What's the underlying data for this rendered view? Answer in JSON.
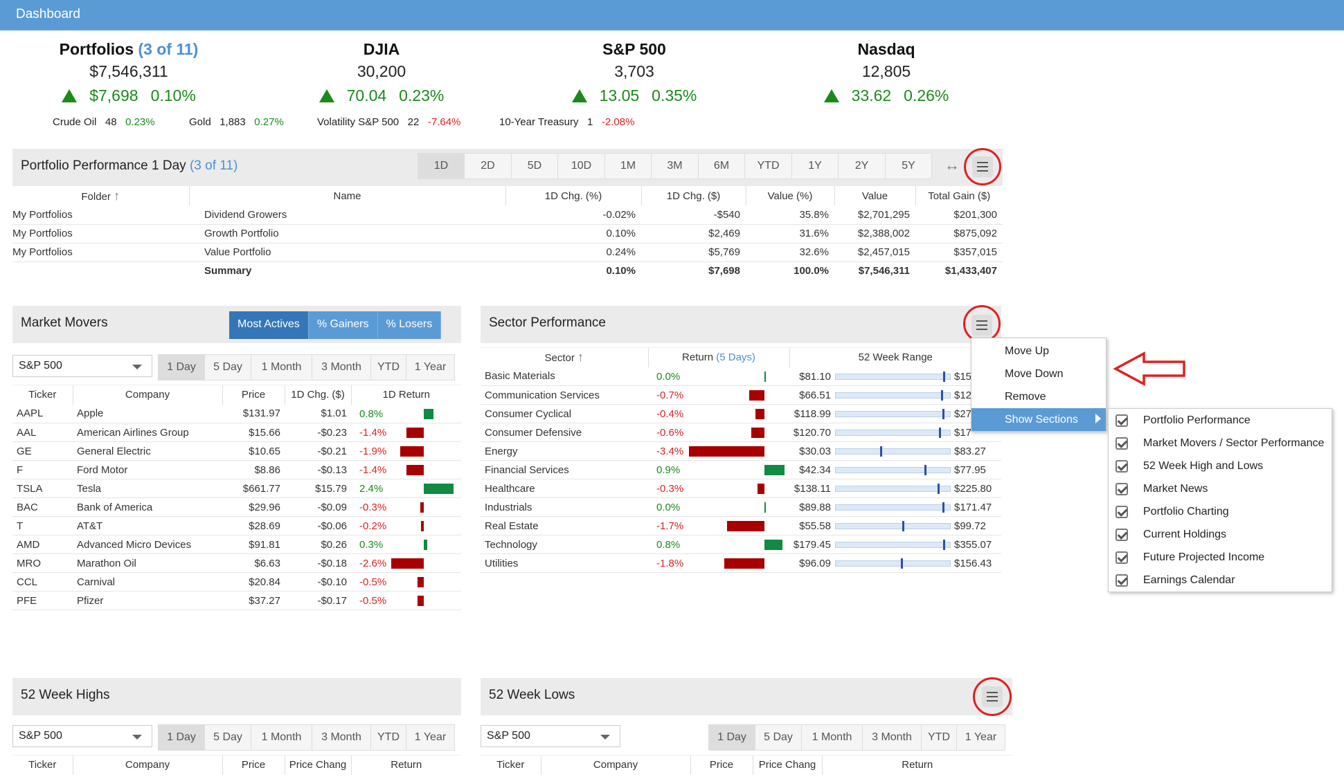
{
  "topbar": {
    "title": "Dashboard"
  },
  "summary": [
    {
      "title": "Portfolios",
      "sub": "(3 of 11)",
      "value": "$7,546,311",
      "chg": "$7,698",
      "pct": "0.10%"
    },
    {
      "title": "DJIA",
      "sub": "",
      "value": "30,200",
      "chg": "70.04",
      "pct": "0.23%"
    },
    {
      "title": "S&P 500",
      "sub": "",
      "value": "3,703",
      "chg": "13.05",
      "pct": "0.35%"
    },
    {
      "title": "Nasdaq",
      "sub": "",
      "value": "12,805",
      "chg": "33.62",
      "pct": "0.26%"
    }
  ],
  "commodities": [
    {
      "name": "Crude Oil",
      "value": "48",
      "pct": "0.23%",
      "dir": "up"
    },
    {
      "name": "Gold",
      "value": "1,883",
      "pct": "0.27%",
      "dir": "up"
    },
    {
      "name": "Volatility S&P 500",
      "value": "22",
      "pct": "-7.64%",
      "dir": "down"
    },
    {
      "name": "10-Year Treasury",
      "value": "1",
      "pct": "-2.08%",
      "dir": "down"
    }
  ],
  "portfolio_perf": {
    "title": "Portfolio Performance 1 Day",
    "sub": "(3 of 11)",
    "ranges": [
      "1D",
      "2D",
      "5D",
      "10D",
      "1M",
      "3M",
      "6M",
      "YTD",
      "1Y",
      "2Y",
      "5Y"
    ],
    "expand_icon": "↔",
    "columns": [
      "Folder",
      "Name",
      "1D Chg. (%)",
      "1D Chg. ($)",
      "Value (%)",
      "Value",
      "Total Gain ($)"
    ],
    "rows": [
      {
        "folder": "My Portfolios",
        "name": "Dividend Growers",
        "pct": "-0.02%",
        "chg": "-$540",
        "vpct": "35.8%",
        "value": "$2,701,295",
        "gain": "$201,300",
        "dir": "down"
      },
      {
        "folder": "My Portfolios",
        "name": "Growth Portfolio",
        "pct": "0.10%",
        "chg": "$2,469",
        "vpct": "31.6%",
        "value": "$2,388,002",
        "gain": "$875,092",
        "dir": "up"
      },
      {
        "folder": "My Portfolios",
        "name": "Value Portfolio",
        "pct": "0.24%",
        "chg": "$5,769",
        "vpct": "32.6%",
        "value": "$2,457,015",
        "gain": "$357,015",
        "dir": "up"
      }
    ],
    "summary": {
      "label": "Summary",
      "pct": "0.10%",
      "chg": "$7,698",
      "vpct": "100.0%",
      "value": "$7,546,311",
      "gain": "$1,433,407"
    }
  },
  "market_movers": {
    "title": "Market Movers",
    "tabs": [
      "Most Actives",
      "% Gainers",
      "% Losers"
    ],
    "index": "S&P 500",
    "ranges": [
      "1 Day",
      "5 Day",
      "1 Month",
      "3 Month",
      "YTD",
      "1 Year"
    ],
    "columns": [
      "Ticker",
      "Company",
      "Price",
      "1D Chg. ($)",
      "1D Return"
    ],
    "rows": [
      {
        "t": "AAPL",
        "c": "Apple",
        "p": "$131.97",
        "ch": "$1.01",
        "r": "0.8%",
        "v": 0.8
      },
      {
        "t": "AAL",
        "c": "American Airlines Group",
        "p": "$15.66",
        "ch": "-$0.23",
        "r": "-1.4%",
        "v": -1.4
      },
      {
        "t": "GE",
        "c": "General Electric",
        "p": "$10.65",
        "ch": "-$0.21",
        "r": "-1.9%",
        "v": -1.9
      },
      {
        "t": "F",
        "c": "Ford Motor",
        "p": "$8.86",
        "ch": "-$0.13",
        "r": "-1.4%",
        "v": -1.4
      },
      {
        "t": "TSLA",
        "c": "Tesla",
        "p": "$661.77",
        "ch": "$15.79",
        "r": "2.4%",
        "v": 2.4
      },
      {
        "t": "BAC",
        "c": "Bank of America",
        "p": "$29.96",
        "ch": "-$0.09",
        "r": "-0.3%",
        "v": -0.3
      },
      {
        "t": "T",
        "c": "AT&T",
        "p": "$28.69",
        "ch": "-$0.06",
        "r": "-0.2%",
        "v": -0.2
      },
      {
        "t": "AMD",
        "c": "Advanced Micro Devices",
        "p": "$91.81",
        "ch": "$0.26",
        "r": "0.3%",
        "v": 0.3
      },
      {
        "t": "MRO",
        "c": "Marathon Oil",
        "p": "$6.63",
        "ch": "-$0.18",
        "r": "-2.6%",
        "v": -2.6
      },
      {
        "t": "CCL",
        "c": "Carnival",
        "p": "$20.84",
        "ch": "-$0.10",
        "r": "-0.5%",
        "v": -0.5
      },
      {
        "t": "PFE",
        "c": "Pfizer",
        "p": "$37.27",
        "ch": "-$0.17",
        "r": "-0.5%",
        "v": -0.5
      }
    ]
  },
  "sector_perf": {
    "title": "Sector Performance",
    "col_sector": "Sector",
    "col_return": "Return",
    "col_return_sub": "(5 Days)",
    "col_range": "52 Week Range",
    "rows": [
      {
        "s": "Basic Materials",
        "r": "0.0%",
        "v": 0.0,
        "lo": "$81.10",
        "hi": "$15",
        "pos": 0.97
      },
      {
        "s": "Communication Services",
        "r": "-0.7%",
        "v": -0.7,
        "lo": "$66.51",
        "hi": "$12",
        "pos": 0.95
      },
      {
        "s": "Consumer Cyclical",
        "r": "-0.4%",
        "v": -0.4,
        "lo": "$118.99",
        "hi": "$27",
        "pos": 0.96
      },
      {
        "s": "Consumer Defensive",
        "r": "-0.6%",
        "v": -0.6,
        "lo": "$120.70",
        "hi": "$17",
        "pos": 0.93
      },
      {
        "s": "Energy",
        "r": "-3.4%",
        "v": -3.4,
        "lo": "$30.03",
        "hi": "$83.27",
        "pos": 0.4
      },
      {
        "s": "Financial Services",
        "r": "0.9%",
        "v": 0.9,
        "lo": "$42.34",
        "hi": "$77.95",
        "pos": 0.8
      },
      {
        "s": "Healthcare",
        "r": "-0.3%",
        "v": -0.3,
        "lo": "$138.11",
        "hi": "$225.80",
        "pos": 0.92
      },
      {
        "s": "Industrials",
        "r": "0.0%",
        "v": 0.0,
        "lo": "$89.88",
        "hi": "$171.47",
        "pos": 0.96
      },
      {
        "s": "Real Estate",
        "r": "-1.7%",
        "v": -1.7,
        "lo": "$55.58",
        "hi": "$99.72",
        "pos": 0.6
      },
      {
        "s": "Technology",
        "r": "0.8%",
        "v": 0.8,
        "lo": "$179.45",
        "hi": "$355.07",
        "pos": 0.97
      },
      {
        "s": "Utilities",
        "r": "-1.8%",
        "v": -1.8,
        "lo": "$96.09",
        "hi": "$156.43",
        "pos": 0.59
      }
    ]
  },
  "context_menu": {
    "items": [
      "Move Up",
      "Move Down",
      "Remove",
      "Show Sections"
    ]
  },
  "sections_menu": {
    "items": [
      "Portfolio Performance",
      "Market Movers / Sector Performance",
      "52 Week High and Lows",
      "Market News",
      "Portfolio Charting",
      "Current Holdings",
      "Future Projected Income",
      "Earnings Calendar"
    ]
  },
  "highs": {
    "title": "52 Week Highs",
    "index": "S&P 500",
    "ranges": [
      "1 Day",
      "5 Day",
      "1 Month",
      "3 Month",
      "YTD",
      "1 Year"
    ],
    "columns": [
      "Ticker",
      "Company",
      "Price",
      "Price Chang",
      "Return"
    ]
  },
  "lows": {
    "title": "52 Week Lows",
    "index": "S&P 500",
    "ranges": [
      "1 Day",
      "5 Day",
      "1 Month",
      "3 Month",
      "YTD",
      "1 Year"
    ],
    "columns": [
      "Ticker",
      "Company",
      "Price",
      "Price Chang",
      "Return"
    ]
  },
  "colors": {
    "accent": "#5b9bd5",
    "up": "#1a8a1a",
    "down": "#e02020",
    "bar_up": "#118a43",
    "bar_down": "#a80000",
    "highlight": "#e02020"
  }
}
